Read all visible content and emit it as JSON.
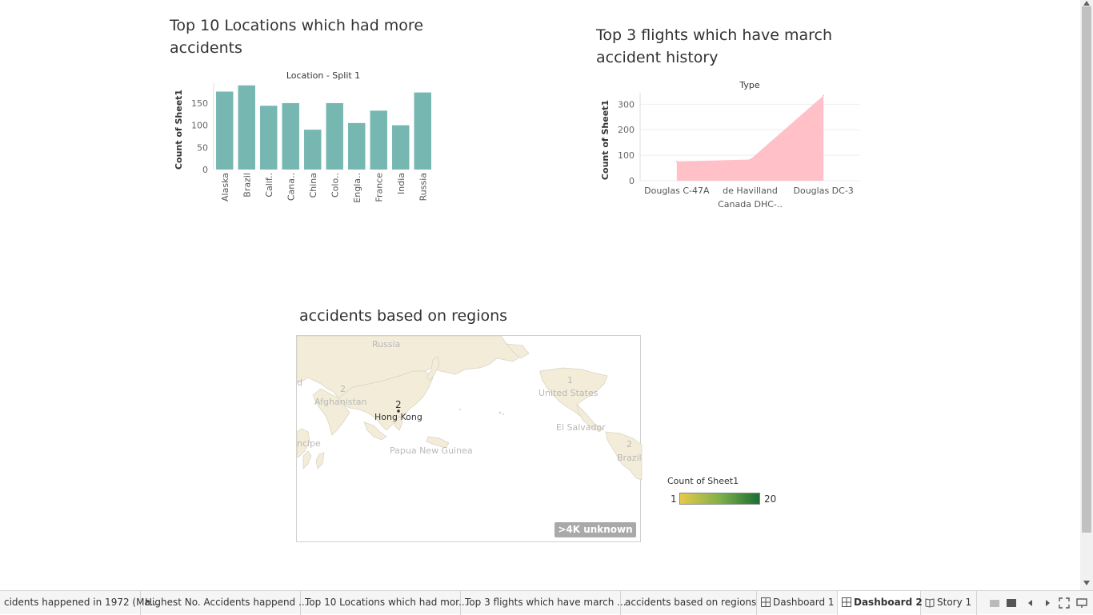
{
  "dashboard": {
    "chart1_title": "Top 10 Locations which had more accidents",
    "chart2_title": "Top 3 flights which have march accident history",
    "map_title": "accidents based on regions"
  },
  "chart_data": [
    {
      "type": "bar",
      "title": "Top 10 Locations which had more accidents",
      "header": "Location - Split 1",
      "ylabel": "Count of Sheet1",
      "categories": [
        "Alaska",
        "Brazil",
        "Calif..",
        "Cana..",
        "China",
        "Colo..",
        "Engla..",
        "France",
        "India",
        "Russia"
      ],
      "values": [
        176,
        190,
        144,
        150,
        90,
        150,
        105,
        133,
        100,
        174
      ],
      "yticks": [
        0,
        50,
        100,
        150
      ],
      "ylim": [
        0,
        195
      ],
      "color": "#76b7b2",
      "grid": false
    },
    {
      "type": "area",
      "title": "Top 3 flights which have march accident history",
      "header": "Type",
      "ylabel": "Count of Sheet1",
      "categories": [
        "Douglas C-47A",
        "de Havilland Canada DHC-..",
        "Douglas DC-3"
      ],
      "category_lines": [
        [
          "Douglas C-47A"
        ],
        [
          "de Havilland",
          "Canada DHC-.."
        ],
        [
          "Douglas DC-3"
        ]
      ],
      "values": [
        76,
        83,
        334
      ],
      "yticks": [
        0,
        100,
        200,
        300
      ],
      "ylim": [
        0,
        345
      ],
      "color": "#ffc0c8",
      "grid": true
    }
  ],
  "map": {
    "labels": {
      "russia": "Russia",
      "afghanistan": "Afghanistan",
      "hong_kong": "Hong Kong",
      "united_states": "United States",
      "el_salvador": "El Salvador",
      "papua": "Papua New Guinea",
      "principe": "ncipe",
      "brazil": "Brazil",
      "d_edge": "d"
    },
    "numbers": {
      "hk": "2",
      "afg": "2",
      "us": "1",
      "brazil": "2"
    },
    "unknown_badge": ">4K unknown",
    "land_color": "#f2ecd9",
    "ocean_color": "#ffffff"
  },
  "legend": {
    "title": "Count of Sheet1",
    "min": "1",
    "max": "20",
    "color_low": "#e8c94a",
    "color_high": "#1b6e35"
  },
  "tabs": [
    {
      "label": "cidents happened in 1972 (Ma...",
      "icon": ""
    },
    {
      "label": "Highest No. Accidents happend ...",
      "icon": ""
    },
    {
      "label": "Top 10 Locations which had mor...",
      "icon": ""
    },
    {
      "label": "Top 3 flights which have march ...",
      "icon": ""
    },
    {
      "label": "accidents based on regions",
      "icon": ""
    },
    {
      "label": "Dashboard 1",
      "icon": "dashboard-icon"
    },
    {
      "label": "Dashboard 2",
      "icon": "dashboard-icon",
      "active": true
    },
    {
      "label": "Story 1",
      "icon": "story-icon"
    }
  ]
}
